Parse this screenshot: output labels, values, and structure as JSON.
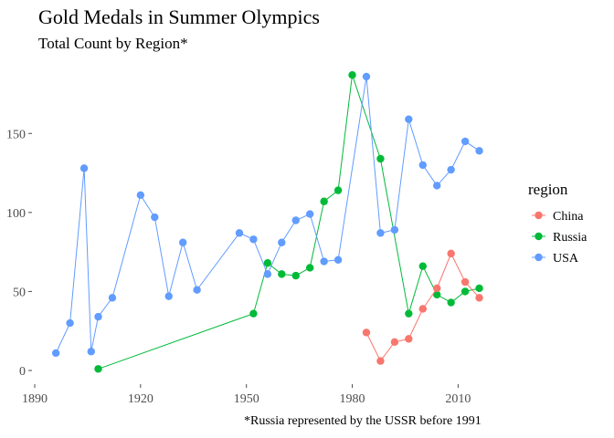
{
  "chart_data": {
    "type": "line",
    "title": "Gold Medals in Summer Olympics",
    "subtitle": "Total Count by Region*",
    "caption": "*Russia represented by the USSR before 1991",
    "xlabel": "",
    "ylabel": "",
    "xlim": [
      1890,
      2020
    ],
    "ylim": [
      0,
      190
    ],
    "xticks": [
      1890,
      1920,
      1950,
      1980,
      2010
    ],
    "yticks": [
      0,
      50,
      100,
      150
    ],
    "grid": false,
    "legend": {
      "title": "region",
      "position": "right"
    },
    "series": [
      {
        "name": "China",
        "color": "#F8766D",
        "x": [
          1984,
          1988,
          1992,
          1996,
          2000,
          2004,
          2008,
          2012,
          2016
        ],
        "y": [
          24,
          6,
          18,
          20,
          39,
          52,
          74,
          56,
          46
        ]
      },
      {
        "name": "Russia",
        "color": "#00BA38",
        "x": [
          1908,
          1952,
          1956,
          1960,
          1964,
          1968,
          1972,
          1976,
          1980,
          1988,
          1996,
          2000,
          2004,
          2008,
          2012,
          2016
        ],
        "y": [
          1,
          36,
          68,
          61,
          60,
          65,
          107,
          114,
          187,
          134,
          36,
          66,
          48,
          43,
          50,
          52
        ]
      },
      {
        "name": "USA",
        "color": "#619CFF",
        "x": [
          1896,
          1900,
          1904,
          1906,
          1908,
          1912,
          1920,
          1924,
          1928,
          1932,
          1936,
          1948,
          1952,
          1956,
          1960,
          1964,
          1968,
          1972,
          1976,
          1984,
          1988,
          1992,
          1996,
          2000,
          2004,
          2008,
          2012,
          2016
        ],
        "y": [
          11,
          30,
          128,
          12,
          34,
          46,
          111,
          97,
          47,
          81,
          51,
          87,
          83,
          61,
          81,
          95,
          99,
          69,
          70,
          186,
          87,
          89,
          159,
          130,
          117,
          127,
          145,
          139
        ]
      }
    ]
  }
}
